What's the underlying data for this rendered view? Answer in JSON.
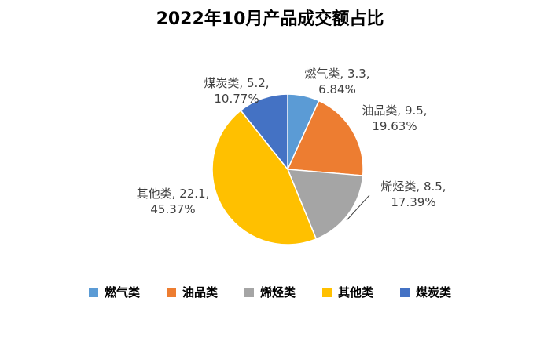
{
  "chart_data": {
    "type": "pie",
    "title": "2022年10月产品成交额占比",
    "legend_position": "bottom",
    "slices": [
      {
        "name": "燃气类",
        "value": 3.3,
        "value_label": "3.3",
        "percent_label": "6.84%",
        "color": "#5B9BD5"
      },
      {
        "name": "油品类",
        "value": 9.5,
        "value_label": "9.5",
        "percent_label": "19.63%",
        "color": "#ED7D31"
      },
      {
        "name": "烯烃类",
        "value": 8.5,
        "value_label": "8.5",
        "percent_label": "17.39%",
        "color": "#A5A5A5"
      },
      {
        "name": "其他类",
        "value": 22.1,
        "value_label": "22.1",
        "percent_label": "45.37%",
        "color": "#FFC000"
      },
      {
        "name": "煤炭类",
        "value": 5.2,
        "value_label": "5.2",
        "percent_label": "10.77%",
        "color": "#4472C4"
      }
    ]
  }
}
